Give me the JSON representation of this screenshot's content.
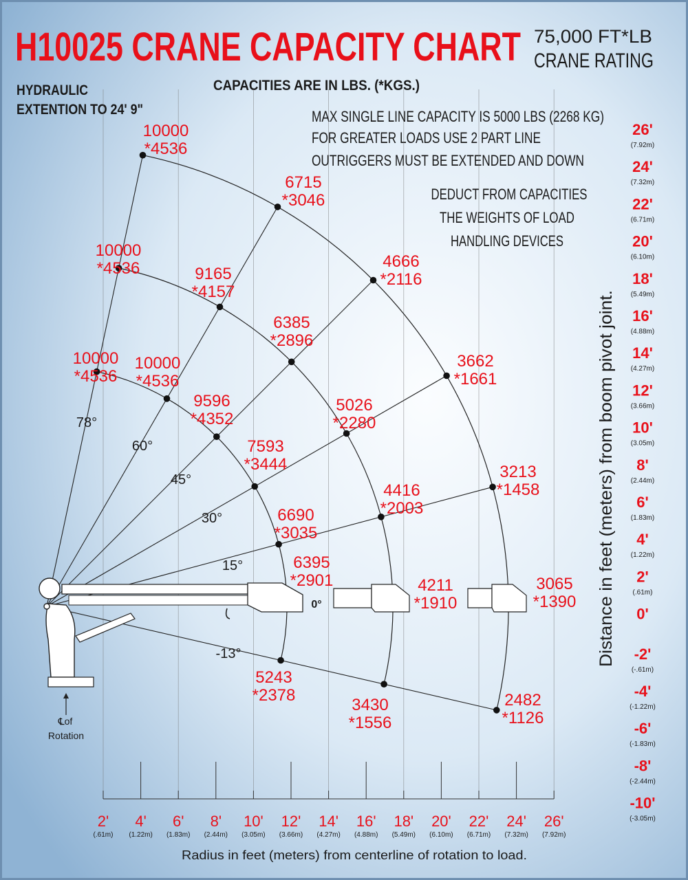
{
  "header": {
    "title": "H10025 CRANE CAPACITY CHART",
    "rating_line1": "75,000 FT*LB",
    "rating_line2": "CRANE RATING",
    "units_note": "CAPACITIES ARE IN LBS. (*KGS.)",
    "extension_line1": "HYDRAULIC",
    "extension_line2": "EXTENTION TO 24' 9\""
  },
  "notes": {
    "line1": "MAX SINGLE LINE CAPACITY IS 5000 LBS (2268 KG)",
    "line2": "FOR GREATER LOADS USE 2 PART LINE",
    "line3": "OUTRIGGERS MUST BE EXTENDED AND DOWN",
    "deduct1": "DEDUCT FROM CAPACITIES",
    "deduct2": "THE WEIGHTS OF LOAD",
    "deduct3": "HANDLING DEVICES"
  },
  "angles": [
    {
      "label": "78°",
      "deg": 78
    },
    {
      "label": "60°",
      "deg": 60
    },
    {
      "label": "45°",
      "deg": 45
    },
    {
      "label": "30°",
      "deg": 30
    },
    {
      "label": "15°",
      "deg": 15
    },
    {
      "label": "0°",
      "deg": 0
    },
    {
      "label": "-13°",
      "deg": -13
    }
  ],
  "capacities": [
    {
      "angle": 78,
      "boom": 1,
      "lbs": "10000",
      "kgs": "*4536"
    },
    {
      "angle": 78,
      "boom": 2,
      "lbs": "10000",
      "kgs": "*4536"
    },
    {
      "angle": 78,
      "boom": 3,
      "lbs": "10000",
      "kgs": "*4536"
    },
    {
      "angle": 60,
      "boom": 1,
      "lbs": "10000",
      "kgs": "*4536"
    },
    {
      "angle": 60,
      "boom": 2,
      "lbs": "9165",
      "kgs": "*4157"
    },
    {
      "angle": 60,
      "boom": 3,
      "lbs": "6715",
      "kgs": "*3046"
    },
    {
      "angle": 45,
      "boom": 1,
      "lbs": "9596",
      "kgs": "*4352"
    },
    {
      "angle": 45,
      "boom": 2,
      "lbs": "6385",
      "kgs": "*2896"
    },
    {
      "angle": 45,
      "boom": 3,
      "lbs": "4666",
      "kgs": "*2116"
    },
    {
      "angle": 30,
      "boom": 1,
      "lbs": "7593",
      "kgs": "*3444"
    },
    {
      "angle": 30,
      "boom": 2,
      "lbs": "5026",
      "kgs": "*2280"
    },
    {
      "angle": 30,
      "boom": 3,
      "lbs": "3662",
      "kgs": "*1661"
    },
    {
      "angle": 15,
      "boom": 1,
      "lbs": "6690",
      "kgs": "*3035"
    },
    {
      "angle": 15,
      "boom": 2,
      "lbs": "4416",
      "kgs": "*2003"
    },
    {
      "angle": 15,
      "boom": 3,
      "lbs": "3213",
      "kgs": "*1458"
    },
    {
      "angle": 0,
      "boom": 1,
      "lbs": "6395",
      "kgs": "*2901"
    },
    {
      "angle": 0,
      "boom": 2,
      "lbs": "4211",
      "kgs": "*1910"
    },
    {
      "angle": 0,
      "boom": 3,
      "lbs": "3065",
      "kgs": "*1390"
    },
    {
      "angle": -13,
      "boom": 1,
      "lbs": "5243",
      "kgs": "*2378"
    },
    {
      "angle": -13,
      "boom": 2,
      "lbs": "3430",
      "kgs": "*1556"
    },
    {
      "angle": -13,
      "boom": 3,
      "lbs": "2482",
      "kgs": "*1126"
    }
  ],
  "x_axis": {
    "title": "Radius in feet (meters) from centerline of rotation to load.",
    "ticks": [
      {
        "ft": "2'",
        "m": "(.61m)"
      },
      {
        "ft": "4'",
        "m": "(1.22m)"
      },
      {
        "ft": "6'",
        "m": "(1.83m)"
      },
      {
        "ft": "8'",
        "m": "(2.44m)"
      },
      {
        "ft": "10'",
        "m": "(3.05m)"
      },
      {
        "ft": "12'",
        "m": "(3.66m)"
      },
      {
        "ft": "14'",
        "m": "(4.27m)"
      },
      {
        "ft": "16'",
        "m": "(4.88m)"
      },
      {
        "ft": "18'",
        "m": "(5.49m)"
      },
      {
        "ft": "20'",
        "m": "(6.10m)"
      },
      {
        "ft": "22'",
        "m": "(6.71m)"
      },
      {
        "ft": "24'",
        "m": "(7.32m)"
      },
      {
        "ft": "26'",
        "m": "(7.92m)"
      }
    ]
  },
  "y_axis": {
    "title": "Distance in feet (meters) from boom pivot joint.",
    "ticks": [
      {
        "ft": "26'",
        "m": "(7.92m)"
      },
      {
        "ft": "24'",
        "m": "(7.32m)"
      },
      {
        "ft": "22'",
        "m": "(6.71m)"
      },
      {
        "ft": "20'",
        "m": "(6.10m)"
      },
      {
        "ft": "18'",
        "m": "(5.49m)"
      },
      {
        "ft": "16'",
        "m": "(4.88m)"
      },
      {
        "ft": "14'",
        "m": "(4.27m)"
      },
      {
        "ft": "12'",
        "m": "(3.66m)"
      },
      {
        "ft": "10'",
        "m": "(3.05m)"
      },
      {
        "ft": "8'",
        "m": "(2.44m)"
      },
      {
        "ft": "6'",
        "m": "(1.83m)"
      },
      {
        "ft": "4'",
        "m": "(1.22m)"
      },
      {
        "ft": "2'",
        "m": "(.61m)"
      },
      {
        "ft": "0'",
        "m": ""
      },
      {
        "ft": "-2'",
        "m": "(-.61m)"
      },
      {
        "ft": "-4'",
        "m": "(-1.22m)"
      },
      {
        "ft": "-6'",
        "m": "(-1.83m)"
      },
      {
        "ft": "-8'",
        "m": "(-2.44m)"
      },
      {
        "ft": "-10'",
        "m": "(-3.05m)"
      }
    ]
  },
  "rotation_label": {
    "line1": "℄of",
    "line2": "Rotation"
  },
  "colors": {
    "accent": "#e8101a",
    "ink": "#1a1a1a",
    "bg_light": "#f4f9fd",
    "bg_dark": "#8fb3d4",
    "border": "#6e8fb0"
  }
}
